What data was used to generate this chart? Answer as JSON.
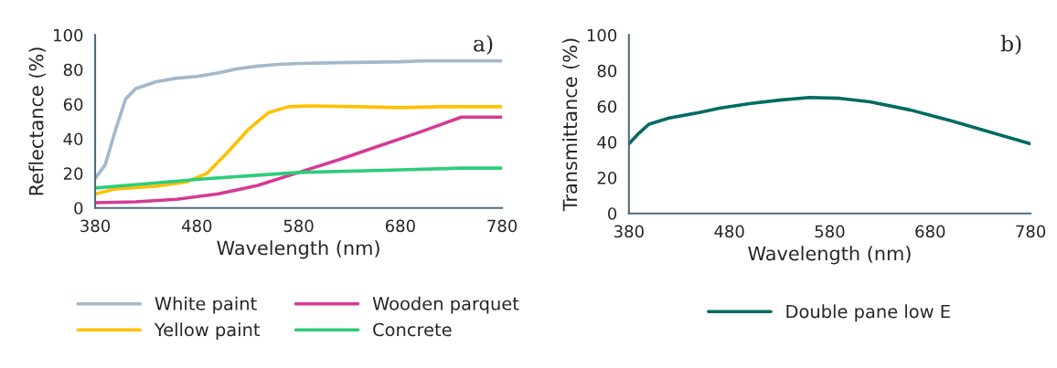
{
  "chart_data": [
    {
      "type": "line",
      "xlabel": "Wavelength (nm)",
      "ylabel": "Reflectance (%)",
      "annotations": [
        "a)"
      ],
      "xlim": [
        380,
        780
      ],
      "ylim": [
        0,
        100
      ],
      "xticks": [
        380,
        480,
        580,
        680,
        780
      ],
      "yticks": [
        0,
        20,
        40,
        60,
        80,
        100
      ],
      "grid": false,
      "legend": "bottom",
      "marker": "none",
      "line_style": "solid",
      "series": [
        {
          "name": "White paint",
          "color": "#a3b8cc",
          "x": [
            380,
            390,
            400,
            410,
            420,
            440,
            460,
            480,
            500,
            520,
            540,
            560,
            580,
            620,
            680,
            700,
            780
          ],
          "values": [
            17,
            25,
            45,
            63,
            69,
            73,
            75,
            76,
            78,
            80.5,
            82,
            83,
            83.5,
            84,
            84.5,
            85,
            85
          ]
        },
        {
          "name": "Yellow paint",
          "color": "#ffc000",
          "x": [
            380,
            400,
            440,
            470,
            490,
            510,
            530,
            550,
            570,
            590,
            640,
            680,
            720,
            780
          ],
          "values": [
            8,
            11,
            12.5,
            15,
            20,
            32,
            45,
            55,
            58.5,
            59,
            58.5,
            58,
            58.5,
            58.5
          ]
        },
        {
          "name": "Wooden parquet",
          "color": "#d63a96",
          "x": [
            380,
            420,
            460,
            500,
            540,
            580,
            620,
            660,
            700,
            740,
            780
          ],
          "values": [
            3,
            3.5,
            5,
            8,
            13,
            20.5,
            28,
            36,
            44,
            52.5,
            52.5
          ]
        },
        {
          "name": "Concrete",
          "color": "#2ecc7a",
          "x": [
            380,
            430,
            480,
            530,
            580,
            680,
            740,
            780
          ],
          "values": [
            11.5,
            14,
            16.5,
            18.5,
            20.5,
            22,
            23,
            23
          ]
        }
      ]
    },
    {
      "type": "line",
      "xlabel": "Wavelength (nm)",
      "ylabel": "Transmittance (%)",
      "annotations": [
        "b)"
      ],
      "xlim": [
        380,
        780
      ],
      "ylim": [
        0,
        100
      ],
      "xticks": [
        380,
        480,
        580,
        680,
        780
      ],
      "yticks": [
        0,
        20,
        40,
        60,
        80,
        100
      ],
      "grid": false,
      "legend": "bottom",
      "marker": "none",
      "line_style": "solid",
      "series": [
        {
          "name": "Double pane low E",
          "color": "#006b63",
          "x": [
            380,
            390,
            400,
            420,
            450,
            470,
            500,
            530,
            560,
            590,
            620,
            660,
            700,
            740,
            780
          ],
          "values": [
            39,
            45,
            50,
            53.5,
            56.5,
            59,
            61.5,
            63.5,
            65,
            64.5,
            62.5,
            58,
            52,
            45.5,
            39
          ]
        }
      ]
    }
  ]
}
